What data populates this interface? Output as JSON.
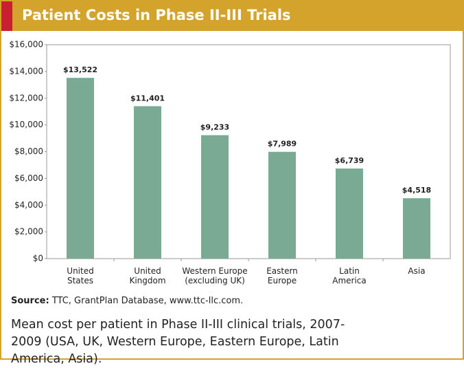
{
  "chart_data": {
    "type": "bar",
    "title": "Patient Costs in Phase II-III Trials",
    "categories": [
      "United\nStates",
      "United\nKingdom",
      "Western Europe\n(excluding UK)",
      "Eastern\nEurope",
      "Latin\nAmerica",
      "Asia"
    ],
    "values": [
      13522,
      11401,
      9233,
      7989,
      6739,
      4518
    ],
    "value_labels": [
      "$13,522",
      "$11,401",
      "$9,233",
      "$7,989",
      "$6,739",
      "$4,518"
    ],
    "color": "#7aaa94",
    "ylim": [
      0,
      16000
    ],
    "yticks": [
      {
        "value": 0,
        "label": "$0"
      },
      {
        "value": 2000,
        "label": "$2,000"
      },
      {
        "value": 4000,
        "label": "$4,000"
      },
      {
        "value": 6000,
        "label": "$6,000"
      },
      {
        "value": 8000,
        "label": "$8,000"
      },
      {
        "value": 10000,
        "label": "$10,000"
      },
      {
        "value": 12000,
        "label": "$12,000"
      },
      {
        "value": 14000,
        "label": "$14,000"
      },
      {
        "value": 16000,
        "label": "$16,000"
      }
    ],
    "grid": false,
    "source": {
      "label": "Source:",
      "text": "TTC, GrantPlan Database, www.ttc-llc.com."
    },
    "caption": "Mean cost per patient in Phase II-III clinical trials, 2007-2009 (USA, UK, Western Europe, Eastern Europe, Latin America, Asia)."
  }
}
